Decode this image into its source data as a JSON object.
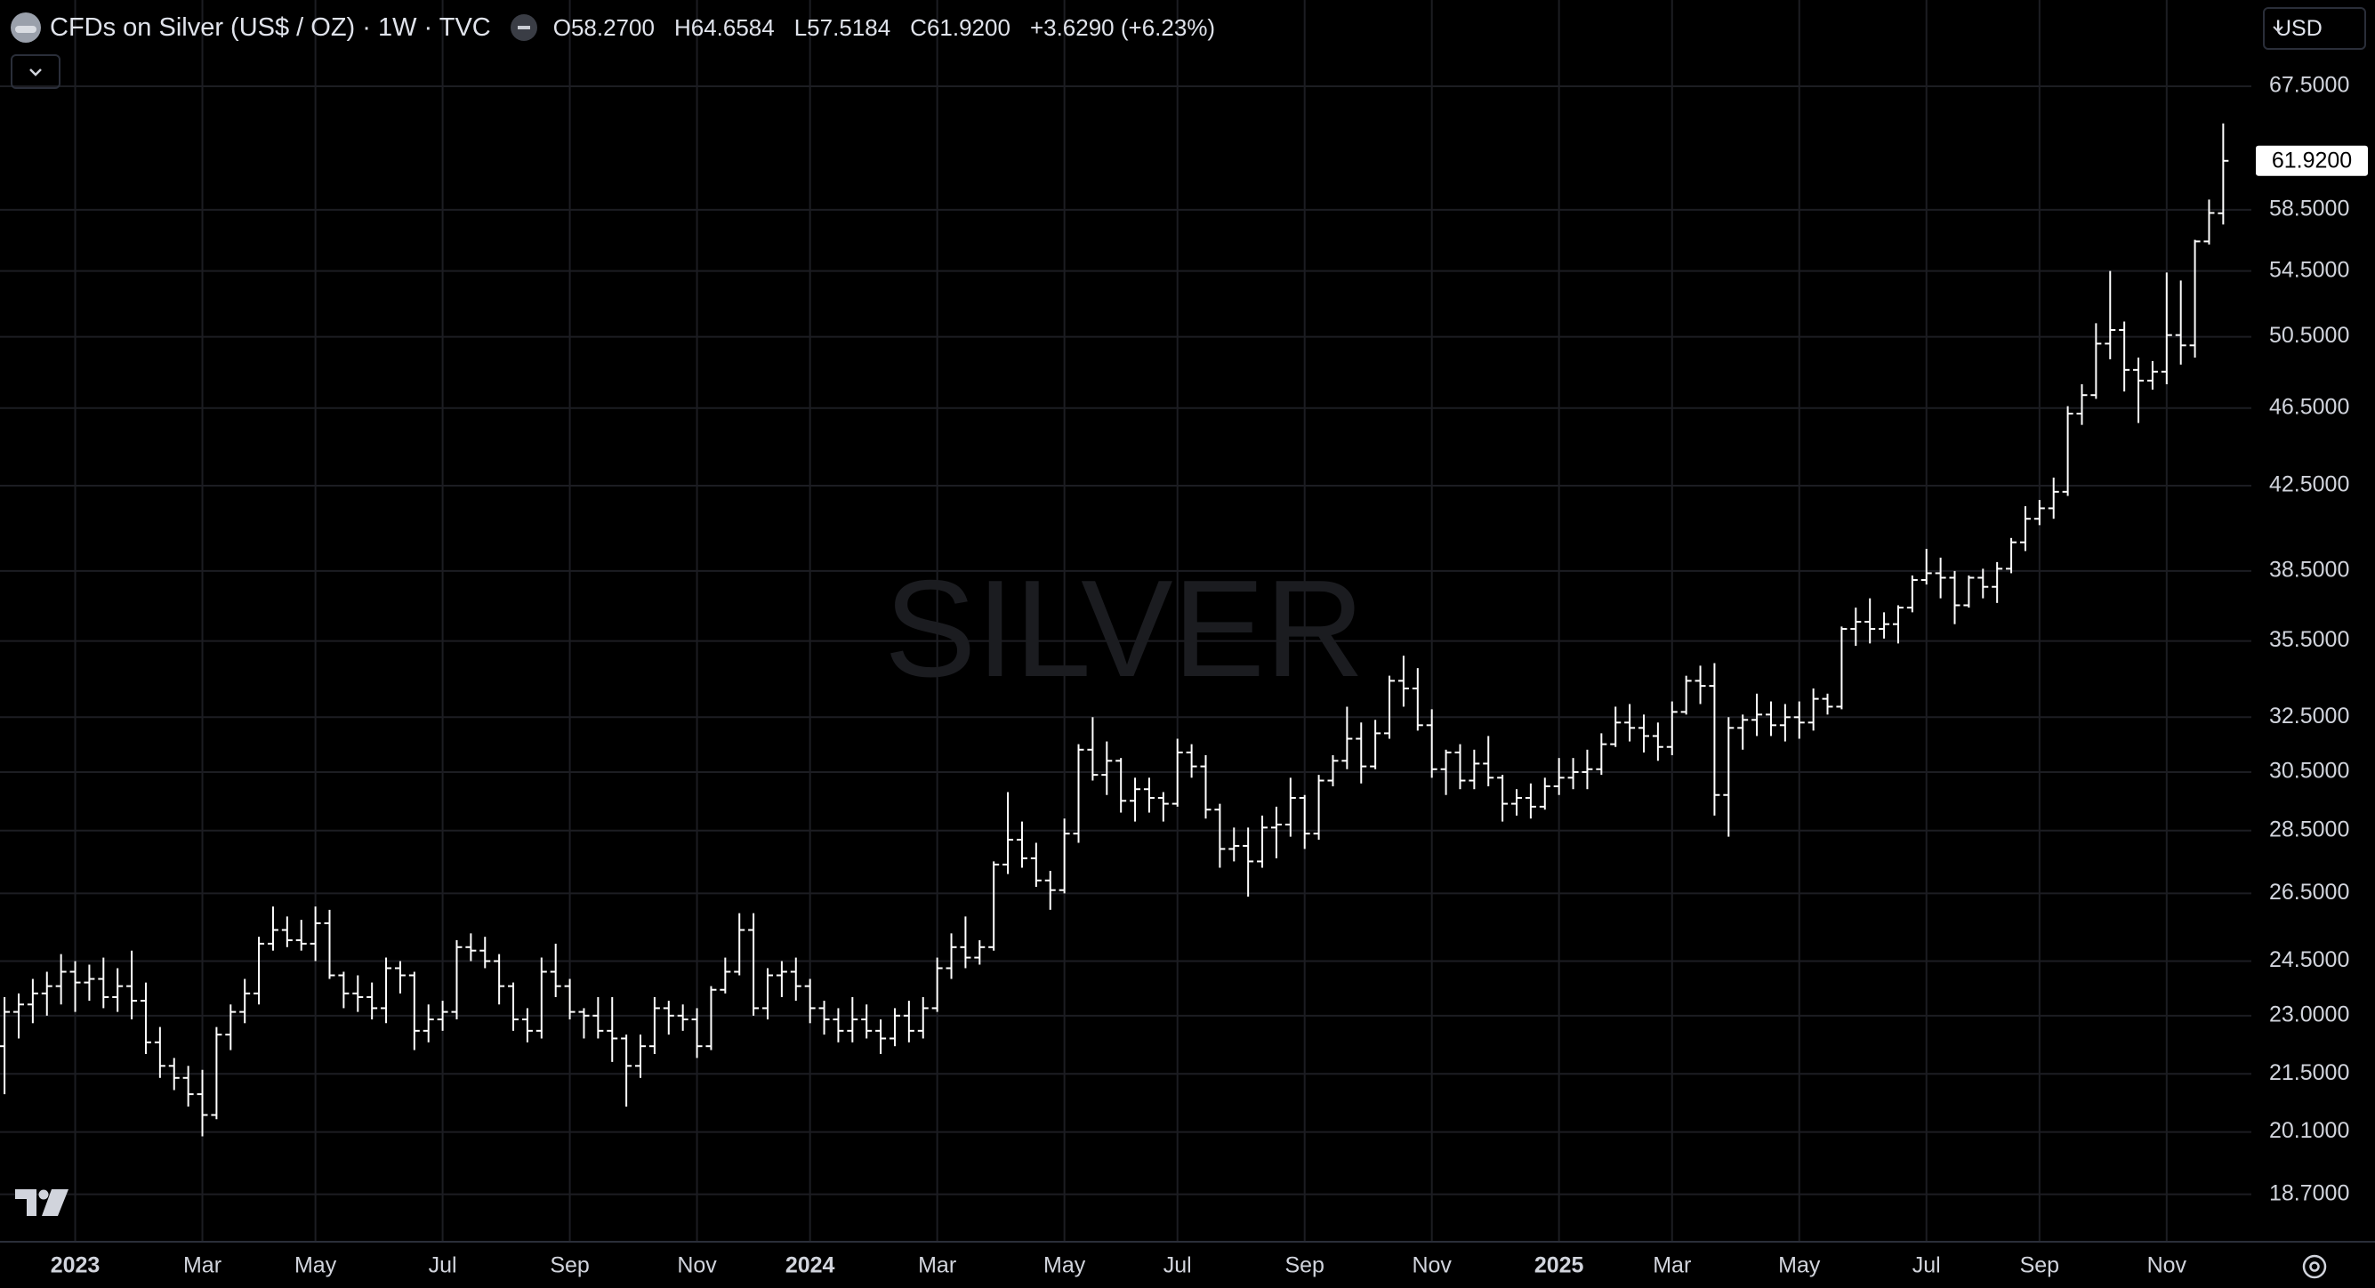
{
  "chart_data": {
    "type": "ohlc",
    "title": "CFDs on Silver (US$ / OZ) · 1W · TVC",
    "legend": [
      "O58.2700",
      "H64.6584",
      "L57.5184",
      "C61.9200",
      "+3.6290 (+6.23%)"
    ],
    "watermark": "SILVER",
    "currency": "USD",
    "last_price_label": "61.9200",
    "color": "#ffffff",
    "log_scale": true,
    "grid": true,
    "categories": [
      null,
      null,
      null,
      null,
      null,
      "2023",
      null,
      null,
      null,
      null,
      null,
      null,
      null,
      null,
      "Mar",
      null,
      null,
      null,
      null,
      null,
      null,
      null,
      "May",
      null,
      null,
      null,
      null,
      null,
      null,
      null,
      null,
      "Jul",
      null,
      null,
      null,
      null,
      null,
      null,
      null,
      null,
      "Sep",
      null,
      null,
      null,
      null,
      null,
      null,
      null,
      null,
      "Nov",
      null,
      null,
      null,
      null,
      null,
      null,
      null,
      "2024",
      null,
      null,
      null,
      null,
      null,
      null,
      null,
      null,
      "Mar",
      null,
      null,
      null,
      null,
      null,
      null,
      null,
      null,
      "May",
      null,
      null,
      null,
      null,
      null,
      null,
      null,
      "Jul",
      null,
      null,
      null,
      null,
      null,
      null,
      null,
      null,
      "Sep",
      null,
      null,
      null,
      null,
      null,
      null,
      null,
      null,
      "Nov",
      null,
      null,
      null,
      null,
      null,
      null,
      null,
      null,
      "2025",
      null,
      null,
      null,
      null,
      null,
      null,
      null,
      "Mar",
      null,
      null,
      null,
      null,
      null,
      null,
      null,
      null,
      "May",
      null,
      null,
      null,
      null,
      null,
      null,
      null,
      null,
      "Jul",
      null,
      null,
      null,
      null,
      null,
      null,
      null,
      "Sep",
      null,
      null,
      null,
      null,
      null,
      null,
      null,
      null,
      "Nov",
      null,
      null,
      null,
      null
    ],
    "open": [
      22.2,
      23.1,
      23.3,
      23.6,
      23.8,
      24.2,
      23.9,
      24.0,
      23.5,
      23.8,
      23.4,
      22.3,
      21.7,
      21.4,
      21.0,
      20.5,
      22.5,
      23.1,
      23.6,
      25.0,
      25.4,
      25.1,
      25.0,
      25.6,
      24.1,
      23.6,
      23.5,
      23.2,
      24.3,
      24.1,
      22.6,
      22.9,
      23.1,
      24.9,
      24.8,
      24.5,
      23.8,
      22.9,
      22.6,
      24.2,
      23.8,
      23.1,
      23.0,
      22.6,
      22.4,
      21.7,
      22.2,
      23.2,
      23.0,
      22.9,
      22.2,
      23.7,
      24.2,
      25.4,
      23.2,
      24.1,
      24.2,
      23.8,
      23.2,
      22.9,
      22.6,
      22.9,
      22.6,
      22.4,
      23.0,
      22.6,
      23.2,
      24.3,
      24.9,
      24.6,
      24.9,
      27.4,
      28.2,
      27.6,
      26.9,
      26.6,
      28.4,
      31.3,
      30.4,
      30.9,
      29.5,
      29.9,
      29.6,
      29.4,
      31.2,
      30.7,
      29.2,
      27.9,
      28.0,
      27.5,
      28.6,
      28.7,
      29.6,
      28.4,
      30.2,
      30.9,
      31.7,
      30.7,
      31.9,
      33.9,
      33.6,
      32.2,
      30.6,
      31.2,
      30.2,
      30.8,
      30.3,
      29.4,
      29.6,
      29.3,
      30.0,
      30.3,
      30.5,
      30.6,
      31.5,
      32.3,
      32.1,
      31.8,
      31.4,
      32.7,
      33.9,
      33.7,
      29.7,
      32.1,
      32.4,
      32.6,
      32.2,
      32.5,
      32.3,
      33.2,
      32.9,
      36.0,
      36.3,
      36.0,
      36.2,
      36.9,
      38.1,
      38.4,
      38.2,
      37.0,
      38.2,
      37.8,
      38.6,
      39.8,
      40.9,
      41.4,
      42.2,
      46.2,
      47.2,
      50.1,
      50.9,
      48.6,
      48.0,
      48.5,
      50.6,
      50.0,
      56.4,
      58.27
    ],
    "high": [
      23.5,
      23.6,
      24.0,
      24.2,
      24.7,
      24.5,
      24.4,
      24.6,
      24.3,
      24.8,
      23.9,
      22.7,
      21.9,
      21.7,
      21.6,
      22.7,
      23.3,
      24.0,
      25.2,
      26.1,
      25.8,
      25.7,
      26.1,
      26.0,
      24.2,
      24.1,
      23.9,
      24.6,
      24.5,
      24.2,
      23.3,
      23.4,
      25.1,
      25.3,
      25.2,
      24.7,
      23.9,
      23.2,
      24.6,
      25.0,
      24.0,
      23.2,
      23.5,
      23.5,
      22.5,
      22.5,
      23.5,
      23.4,
      23.3,
      23.2,
      23.8,
      24.6,
      25.9,
      25.9,
      24.3,
      24.5,
      24.6,
      24.0,
      23.4,
      23.2,
      23.5,
      23.3,
      22.9,
      23.2,
      23.4,
      23.5,
      24.6,
      25.3,
      25.8,
      25.1,
      27.5,
      29.8,
      28.8,
      28.1,
      27.2,
      28.9,
      31.5,
      32.5,
      31.6,
      31.0,
      30.3,
      30.3,
      29.8,
      31.7,
      31.5,
      31.1,
      29.4,
      28.6,
      28.6,
      29.0,
      29.3,
      30.3,
      29.7,
      30.4,
      31.1,
      32.9,
      32.3,
      32.4,
      34.1,
      34.9,
      34.4,
      32.8,
      31.3,
      31.5,
      31.3,
      31.8,
      30.4,
      29.9,
      30.1,
      30.3,
      31.0,
      31.0,
      31.3,
      31.9,
      32.9,
      33.0,
      32.6,
      32.3,
      33.1,
      34.1,
      34.5,
      34.6,
      32.5,
      32.6,
      33.4,
      33.1,
      33.0,
      33.1,
      33.6,
      33.4,
      36.1,
      36.9,
      37.3,
      36.7,
      37.0,
      38.3,
      39.5,
      39.1,
      38.5,
      38.3,
      38.6,
      38.9,
      40.0,
      41.5,
      41.8,
      42.9,
      46.6,
      47.8,
      51.3,
      54.5,
      51.4,
      49.3,
      49.1,
      54.4,
      53.9,
      56.5,
      59.2,
      64.6584
    ],
    "low": [
      21.0,
      22.4,
      22.8,
      23.0,
      23.3,
      23.1,
      23.4,
      23.2,
      23.1,
      22.9,
      22.0,
      21.4,
      21.1,
      20.7,
      20.0,
      20.4,
      22.1,
      22.8,
      23.3,
      24.8,
      24.9,
      24.8,
      24.5,
      24.0,
      23.2,
      23.1,
      22.9,
      22.8,
      23.6,
      22.1,
      22.3,
      22.6,
      22.9,
      24.5,
      24.3,
      23.3,
      22.6,
      22.3,
      22.4,
      23.5,
      22.9,
      22.4,
      22.4,
      21.8,
      20.7,
      21.4,
      22.0,
      22.5,
      22.6,
      21.9,
      22.1,
      23.6,
      24.1,
      23.0,
      22.9,
      23.5,
      23.4,
      22.8,
      22.5,
      22.3,
      22.3,
      22.4,
      22.0,
      22.2,
      22.3,
      22.4,
      23.1,
      24.0,
      24.3,
      24.4,
      24.8,
      27.1,
      27.3,
      26.7,
      26.0,
      26.5,
      28.1,
      30.2,
      29.7,
      29.1,
      28.8,
      29.1,
      28.8,
      29.3,
      30.3,
      28.9,
      27.3,
      27.5,
      26.4,
      27.3,
      27.6,
      28.3,
      27.9,
      28.2,
      30.0,
      30.6,
      30.1,
      30.6,
      31.7,
      32.9,
      32.0,
      30.3,
      29.7,
      29.9,
      29.9,
      30.0,
      28.8,
      29.0,
      28.9,
      29.2,
      29.7,
      29.9,
      29.9,
      30.4,
      31.4,
      31.6,
      31.2,
      30.9,
      31.1,
      32.6,
      33.0,
      29.0,
      28.3,
      31.3,
      31.8,
      31.8,
      31.6,
      31.7,
      32.0,
      32.6,
      32.8,
      35.3,
      35.4,
      35.6,
      35.4,
      36.7,
      37.9,
      37.3,
      36.2,
      36.9,
      37.3,
      37.1,
      38.4,
      39.4,
      40.6,
      40.9,
      42.0,
      45.6,
      47.0,
      49.2,
      47.4,
      45.7,
      47.5,
      47.8,
      48.9,
      49.3,
      56.2,
      57.5184
    ],
    "close": [
      23.1,
      23.3,
      23.6,
      23.8,
      24.2,
      23.9,
      24.0,
      23.5,
      23.8,
      23.4,
      22.3,
      21.7,
      21.4,
      21.0,
      20.5,
      22.5,
      23.1,
      23.6,
      25.0,
      25.4,
      25.1,
      25.0,
      25.6,
      24.1,
      23.6,
      23.5,
      23.2,
      24.3,
      24.1,
      22.6,
      22.9,
      23.1,
      24.9,
      24.8,
      24.5,
      23.8,
      22.9,
      22.6,
      24.2,
      23.8,
      23.1,
      23.0,
      22.6,
      22.4,
      21.7,
      22.2,
      23.2,
      23.0,
      22.9,
      22.2,
      23.7,
      24.2,
      25.4,
      23.2,
      24.1,
      24.2,
      23.8,
      23.2,
      22.9,
      22.6,
      22.9,
      22.6,
      22.4,
      23.0,
      22.6,
      23.2,
      24.3,
      24.9,
      24.6,
      24.9,
      27.4,
      28.2,
      27.6,
      26.9,
      26.6,
      28.4,
      31.3,
      30.4,
      30.9,
      29.5,
      29.9,
      29.6,
      29.4,
      31.2,
      30.7,
      29.2,
      27.9,
      28.0,
      27.5,
      28.6,
      28.7,
      29.6,
      28.4,
      30.2,
      30.9,
      31.7,
      30.7,
      31.9,
      33.9,
      33.6,
      32.2,
      30.6,
      31.2,
      30.2,
      30.8,
      30.3,
      29.4,
      29.6,
      29.3,
      30.0,
      30.3,
      30.5,
      30.6,
      31.5,
      32.3,
      32.1,
      31.8,
      31.4,
      32.7,
      33.9,
      33.7,
      29.7,
      32.1,
      32.4,
      32.6,
      32.2,
      32.5,
      32.3,
      33.2,
      32.9,
      36.0,
      36.3,
      36.0,
      36.2,
      36.9,
      38.1,
      38.4,
      38.2,
      37.0,
      38.2,
      37.8,
      38.6,
      39.8,
      40.9,
      41.4,
      42.2,
      46.2,
      47.2,
      50.1,
      50.9,
      48.6,
      48.0,
      48.5,
      50.6,
      50.0,
      56.4,
      58.29,
      61.92
    ],
    "ylim": [
      17.7,
      74.6
    ],
    "yticks": [
      {
        "value": 18.7,
        "label": "18.7000"
      },
      {
        "value": 20.1,
        "label": "20.1000"
      },
      {
        "value": 21.5,
        "label": "21.5000"
      },
      {
        "value": 23,
        "label": "23.0000"
      },
      {
        "value": 24.5,
        "label": "24.5000"
      },
      {
        "value": 26.5,
        "label": "26.5000"
      },
      {
        "value": 28.5,
        "label": "28.5000"
      },
      {
        "value": 30.5,
        "label": "30.5000"
      },
      {
        "value": 32.5,
        "label": "32.5000"
      },
      {
        "value": 35.5,
        "label": "35.5000"
      },
      {
        "value": 38.5,
        "label": "38.5000"
      },
      {
        "value": 42.5,
        "label": "42.5000"
      },
      {
        "value": 46.5,
        "label": "46.5000"
      },
      {
        "value": 50.5,
        "label": "50.5000"
      },
      {
        "value": 54.5,
        "label": "54.5000"
      },
      {
        "value": 58.5,
        "label": "58.5000"
      },
      {
        "value": 67.5,
        "label": "67.5000"
      }
    ]
  }
}
